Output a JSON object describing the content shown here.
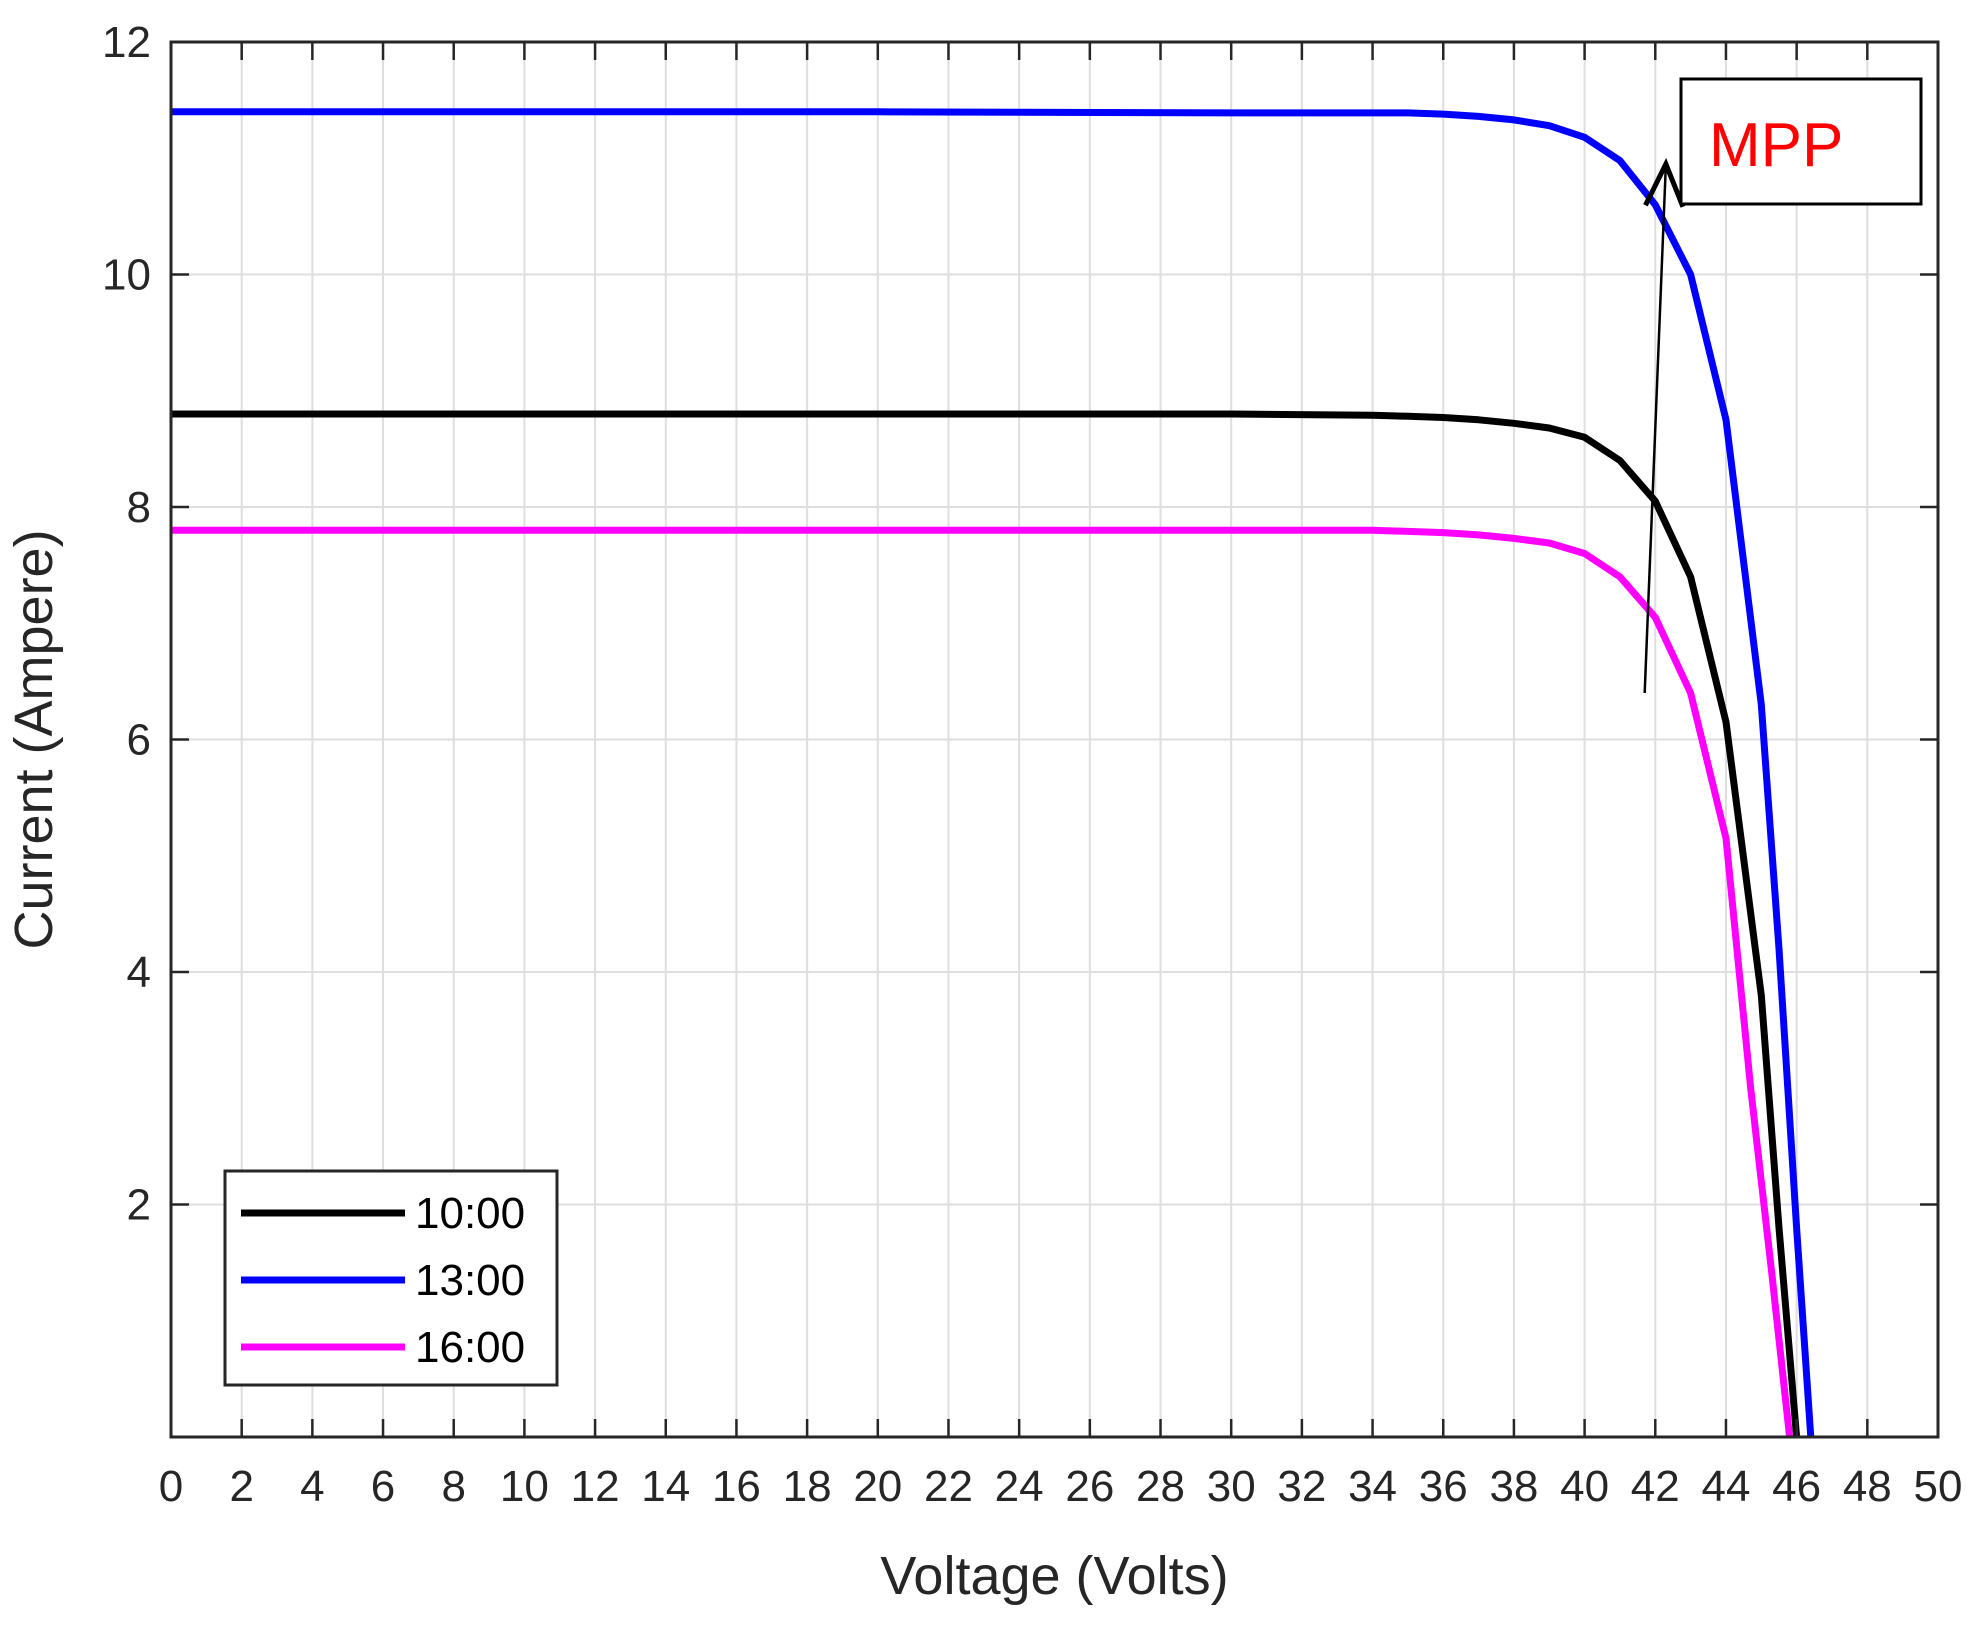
{
  "chart_data": {
    "type": "line",
    "title": "",
    "xlabel": "Voltage (Volts)",
    "ylabel": "Current (Ampere)",
    "xlim": [
      0,
      50
    ],
    "ylim": [
      0,
      12
    ],
    "xticks": [
      0,
      2,
      4,
      6,
      8,
      10,
      12,
      14,
      16,
      18,
      20,
      22,
      24,
      26,
      28,
      30,
      32,
      34,
      36,
      38,
      40,
      42,
      44,
      46,
      48,
      50
    ],
    "yticks": [
      2,
      4,
      6,
      8,
      10,
      12
    ],
    "grid": true,
    "legend_position": "bottom-left",
    "series": [
      {
        "name": "10:00",
        "color": "#000000",
        "x": [
          0,
          20,
          30,
          34,
          35,
          36,
          37,
          38,
          39,
          40,
          41,
          42,
          43,
          44,
          45,
          45.5,
          46
        ],
        "y": [
          8.8,
          8.8,
          8.8,
          8.79,
          8.78,
          8.77,
          8.75,
          8.72,
          8.68,
          8.6,
          8.4,
          8.05,
          7.4,
          6.15,
          3.8,
          1.8,
          0
        ]
      },
      {
        "name": "13:00",
        "color": "#0000ff",
        "x": [
          0,
          20,
          30,
          34,
          35,
          36,
          37,
          38,
          39,
          40,
          41,
          42,
          43,
          44,
          45,
          45.5,
          46,
          46.4
        ],
        "y": [
          11.4,
          11.4,
          11.39,
          11.39,
          11.39,
          11.38,
          11.36,
          11.33,
          11.28,
          11.18,
          10.98,
          10.6,
          10.0,
          8.75,
          6.3,
          4.2,
          1.8,
          0
        ]
      },
      {
        "name": "16:00",
        "color": "#ff00ff",
        "x": [
          0,
          20,
          30,
          34,
          35,
          36,
          37,
          38,
          39,
          40,
          41,
          42,
          43,
          44,
          44.7,
          45.3,
          45.8
        ],
        "y": [
          7.8,
          7.8,
          7.8,
          7.8,
          7.79,
          7.78,
          7.76,
          7.73,
          7.69,
          7.6,
          7.4,
          7.05,
          6.4,
          5.15,
          3.0,
          1.4,
          0
        ]
      }
    ],
    "annotations": [
      {
        "text": "MPP",
        "color": "#ff0000",
        "arrow_from": [
          41.7,
          6.4
        ],
        "arrow_to": [
          42.3,
          10.95
        ]
      }
    ]
  }
}
